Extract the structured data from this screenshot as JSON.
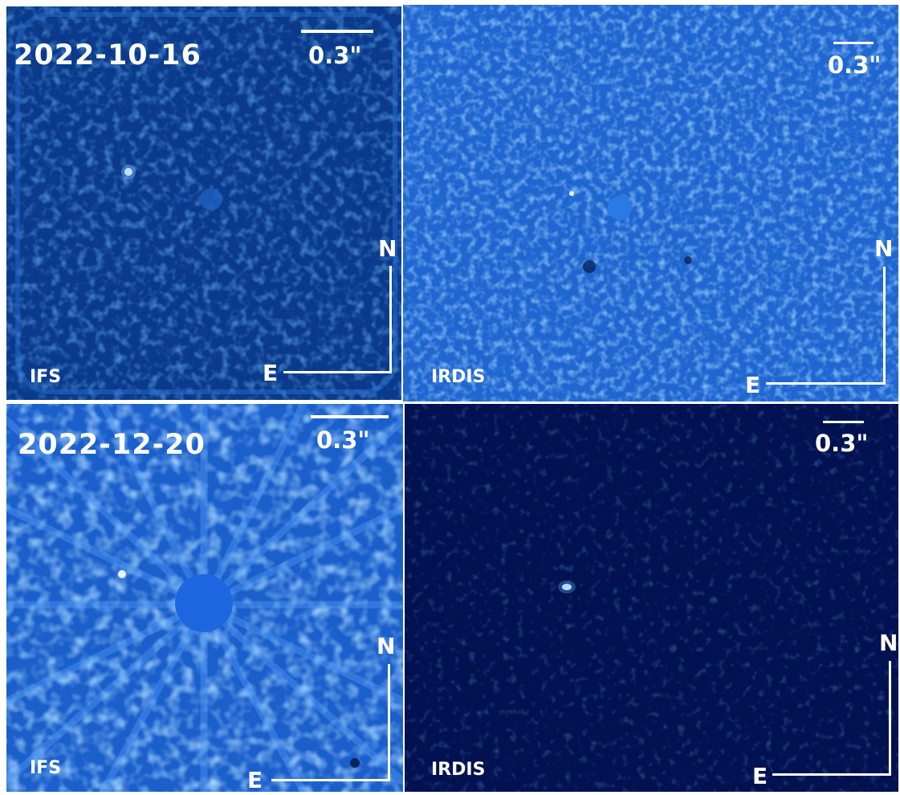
{
  "panels": [
    {
      "id": "p1",
      "date": "2022-10-16",
      "instrument": "IFS",
      "scale": "0.3\"",
      "north": "N",
      "east": "E",
      "bg": "#0b3a8c",
      "noise": "#1e6ad6"
    },
    {
      "id": "p2",
      "date": "",
      "instrument": "IRDIS",
      "scale": "0.3\"",
      "north": "N",
      "east": "E",
      "bg": "#1f66d0",
      "noise": "#3d8bf0"
    },
    {
      "id": "p3",
      "date": "2022-12-20",
      "instrument": "IFS",
      "scale": "0.3\"",
      "north": "N",
      "east": "E",
      "bg": "#1b5fcb",
      "noise": "#5aa6ff"
    },
    {
      "id": "p4",
      "date": "",
      "instrument": "IRDIS",
      "scale": "0.3\"",
      "north": "N",
      "east": "E",
      "bg": "#02114f",
      "noise": "#0a2c86"
    }
  ]
}
